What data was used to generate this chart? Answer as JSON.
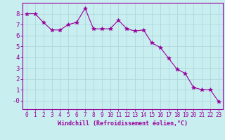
{
  "x": [
    0,
    1,
    2,
    3,
    4,
    5,
    6,
    7,
    8,
    9,
    10,
    11,
    12,
    13,
    14,
    15,
    16,
    17,
    18,
    19,
    20,
    21,
    22,
    23
  ],
  "y": [
    8.0,
    8.0,
    7.2,
    6.5,
    6.5,
    7.0,
    7.2,
    8.5,
    6.6,
    6.6,
    6.6,
    7.4,
    6.6,
    6.4,
    6.5,
    5.3,
    4.9,
    3.9,
    2.9,
    2.5,
    1.2,
    1.0,
    1.0,
    -0.1
  ],
  "line_color": "#990099",
  "marker": "*",
  "marker_size": 4,
  "bg_color": "#c8eef0",
  "grid_color": "#b0d8dc",
  "xlabel": "Windchill (Refroidissement éolien,°C)",
  "xlabel_color": "#990099",
  "axis_color": "#990099",
  "tick_color": "#990099",
  "ylim": [
    -0.8,
    9.0
  ],
  "xlim": [
    -0.5,
    23.5
  ],
  "yticks": [
    0,
    1,
    2,
    3,
    4,
    5,
    6,
    7,
    8
  ],
  "xticks": [
    0,
    1,
    2,
    3,
    4,
    5,
    6,
    7,
    8,
    9,
    10,
    11,
    12,
    13,
    14,
    15,
    16,
    17,
    18,
    19,
    20,
    21,
    22,
    23
  ]
}
